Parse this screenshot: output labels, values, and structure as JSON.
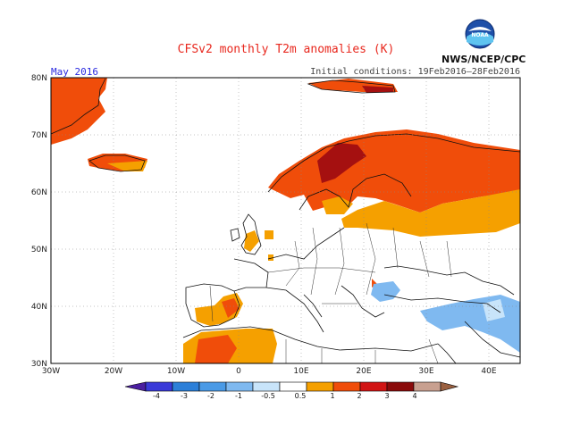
{
  "title": "CFSv2 monthly T2m anomalies (K)",
  "month_label": "May 2016",
  "initial_conditions": "Initial conditions: 19Feb2016–28Feb2016",
  "agency": "NWS/NCEP/CPC",
  "logo_text": "NOAA",
  "axes": {
    "x_ticks": [
      "30W",
      "20W",
      "10W",
      "0",
      "10E",
      "20E",
      "30E",
      "40E"
    ],
    "y_ticks": [
      "30N",
      "40N",
      "50N",
      "60N",
      "70N",
      "80N"
    ]
  },
  "colorbar": {
    "labels": [
      "-4",
      "-3",
      "-2",
      "-1",
      "-0.5",
      "0.5",
      "1",
      "2",
      "3",
      "4"
    ],
    "colors": [
      "#4b1fa0",
      "#3a3ad8",
      "#2c7fd8",
      "#7fb9f0",
      "#c8e4fa",
      "#ffffff",
      "#f5a000",
      "#f04d0a",
      "#d11414",
      "#8a0b0b",
      "#c8a090",
      "#9a6040"
    ]
  },
  "palette": {
    "land_none": "#ffffff",
    "orange": "#f5a000",
    "red": "#f04d0a",
    "darkred": "#a51010",
    "lightblue": "#7fb9f0",
    "coast": "#111111"
  }
}
